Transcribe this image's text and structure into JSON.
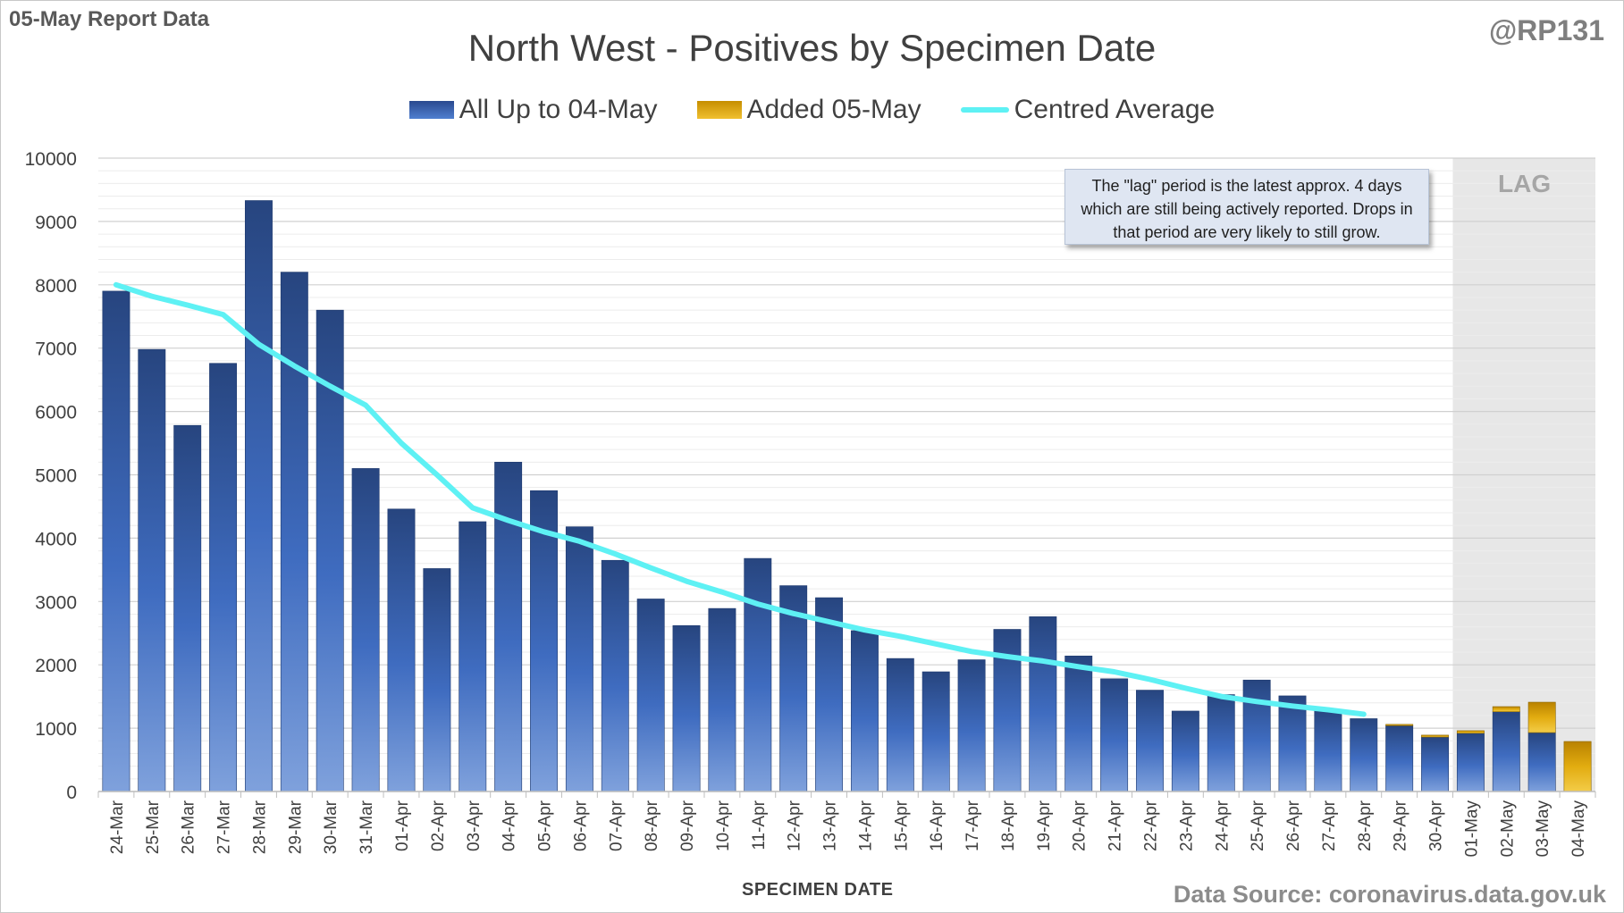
{
  "header": {
    "report_label": "05-May Report Data",
    "handle": "@RP131",
    "title": "North West - Positives by Specimen Date"
  },
  "legend": {
    "base": "All Up to 04-May",
    "added": "Added 05-May",
    "average": "Centred Average"
  },
  "note": {
    "text": "The \"lag\" period is the latest approx. 4 days which are still being actively reported.  Drops in that period are very likely to still grow."
  },
  "lag_label": "LAG",
  "footer": {
    "xlabel": "SPECIMEN DATE",
    "source": "Data Source: coronavirus.data.gov.uk"
  },
  "colors": {
    "base_bar": "#2f5597",
    "added_bar": "#e0a800",
    "average_line": "#5ef1f4",
    "lag_shading": "#e7e7e7"
  },
  "chart_data": {
    "type": "bar",
    "title": "North West - Positives by Specimen Date",
    "xlabel": "SPECIMEN DATE",
    "ylabel": "",
    "ylim": [
      0,
      10000
    ],
    "yticks": [
      0,
      1000,
      2000,
      3000,
      4000,
      5000,
      6000,
      7000,
      8000,
      9000,
      10000
    ],
    "grid": true,
    "legend_position": "top",
    "stacked": true,
    "lag_period": [
      "01-May",
      "04-May"
    ],
    "categories": [
      "24-Mar",
      "25-Mar",
      "26-Mar",
      "27-Mar",
      "28-Mar",
      "29-Mar",
      "30-Mar",
      "31-Mar",
      "01-Apr",
      "02-Apr",
      "03-Apr",
      "04-Apr",
      "05-Apr",
      "06-Apr",
      "07-Apr",
      "08-Apr",
      "09-Apr",
      "10-Apr",
      "11-Apr",
      "12-Apr",
      "13-Apr",
      "14-Apr",
      "15-Apr",
      "16-Apr",
      "17-Apr",
      "18-Apr",
      "19-Apr",
      "20-Apr",
      "21-Apr",
      "22-Apr",
      "23-Apr",
      "24-Apr",
      "25-Apr",
      "26-Apr",
      "27-Apr",
      "28-Apr",
      "29-Apr",
      "30-Apr",
      "01-May",
      "02-May",
      "03-May",
      "04-May"
    ],
    "series": [
      {
        "name": "All Up to 04-May",
        "kind": "bar",
        "values": [
          7900,
          6980,
          5780,
          6760,
          9330,
          8200,
          7600,
          5100,
          4460,
          3520,
          4260,
          5200,
          4750,
          4180,
          3650,
          3040,
          2620,
          2890,
          3680,
          3250,
          3060,
          2540,
          2100,
          1890,
          2080,
          2560,
          2760,
          2140,
          1780,
          1600,
          1270,
          1530,
          1760,
          1510,
          1290,
          1150,
          1040,
          860,
          920,
          1260,
          930,
          0
        ]
      },
      {
        "name": "Added 05-May",
        "kind": "bar",
        "values": [
          0,
          0,
          0,
          0,
          0,
          0,
          0,
          0,
          0,
          0,
          0,
          0,
          0,
          0,
          0,
          0,
          0,
          0,
          0,
          0,
          0,
          0,
          0,
          0,
          0,
          0,
          0,
          0,
          0,
          0,
          0,
          0,
          0,
          0,
          0,
          0,
          20,
          30,
          40,
          80,
          480,
          790
        ]
      },
      {
        "name": "Centred Average",
        "kind": "line",
        "values": [
          8000,
          7820,
          7680,
          7530,
          7060,
          6720,
          6400,
          6100,
          5500,
          5000,
          4480,
          4280,
          4100,
          3950,
          3750,
          3530,
          3320,
          3150,
          2960,
          2810,
          2680,
          2550,
          2450,
          2330,
          2210,
          2130,
          2060,
          1970,
          1890,
          1770,
          1630,
          1500,
          1420,
          1350,
          1290,
          1220,
          null,
          null,
          null,
          null,
          null,
          null
        ]
      }
    ]
  }
}
